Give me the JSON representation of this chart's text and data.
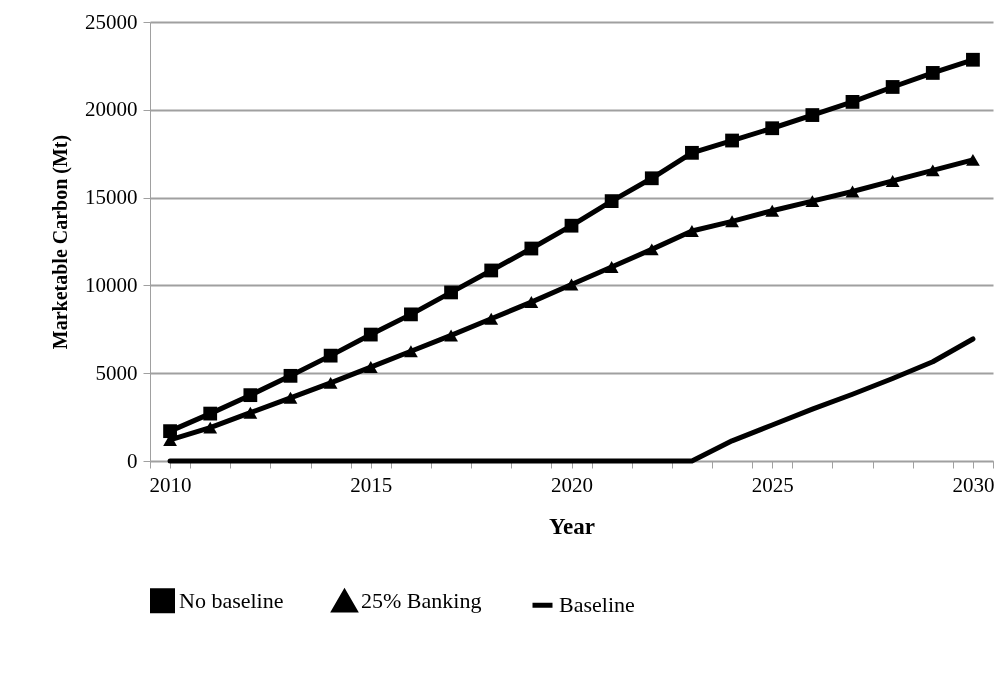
{
  "chart_data": {
    "type": "line",
    "xlabel": "Year",
    "ylabel": "Marketable Carbon (Mt)",
    "x": [
      2010,
      2011,
      2012,
      2013,
      2014,
      2015,
      2016,
      2017,
      2018,
      2019,
      2020,
      2021,
      2022,
      2023,
      2024,
      2025,
      2026,
      2027,
      2028,
      2029,
      2030
    ],
    "series": [
      {
        "name": "No baseline",
        "color": "#000000",
        "marker": "square",
        "values": [
          1700,
          2700,
          3750,
          4850,
          6000,
          7200,
          8350,
          9600,
          10850,
          12100,
          13400,
          14800,
          16100,
          17550,
          18250,
          18950,
          19700,
          20450,
          21300,
          22100,
          22850
        ]
      },
      {
        "name": "25% Banking",
        "color": "#000000",
        "marker": "triangle",
        "values": [
          1200,
          1900,
          2750,
          3600,
          4450,
          5350,
          6250,
          7150,
          8100,
          9050,
          10050,
          11050,
          12050,
          13100,
          13650,
          14250,
          14800,
          15350,
          15950,
          16550,
          17150
        ]
      },
      {
        "name": "Baseline",
        "color": "#000000",
        "marker": "none",
        "values": [
          0,
          0,
          0,
          0,
          0,
          0,
          0,
          0,
          0,
          0,
          0,
          0,
          0,
          0,
          1150,
          2050,
          2950,
          3800,
          4700,
          5650,
          6950
        ]
      }
    ],
    "xlim": [
      2009.5,
      2030.5
    ],
    "xticks": [
      {
        "value": 2009.5,
        "label": null
      },
      2010,
      {
        "value": 2010.5,
        "label": null
      },
      {
        "value": 2011.5,
        "label": null
      },
      {
        "value": 2012.5,
        "label": null
      },
      {
        "value": 2013.5,
        "label": null
      },
      {
        "value": 2014.5,
        "label": null
      },
      2015,
      {
        "value": 2015.5,
        "label": null
      },
      {
        "value": 2016.5,
        "label": null
      },
      {
        "value": 2017.5,
        "label": null
      },
      {
        "value": 2018.5,
        "label": null
      },
      {
        "value": 2019.5,
        "label": null
      },
      2020,
      {
        "value": 2020.5,
        "label": null
      },
      {
        "value": 2021.5,
        "label": null
      },
      {
        "value": 2022.5,
        "label": null
      },
      {
        "value": 2023.5,
        "label": null
      },
      {
        "value": 2024.5,
        "label": null
      },
      2025,
      {
        "value": 2025.5,
        "label": null
      },
      {
        "value": 2026.5,
        "label": null
      },
      {
        "value": 2027.5,
        "label": null
      },
      {
        "value": 2028.5,
        "label": null
      },
      {
        "value": 2029.5,
        "label": null
      },
      2030,
      {
        "value": 2030.5,
        "label": null
      }
    ],
    "ylim": [
      0,
      25000
    ],
    "yticks": [
      0,
      5000,
      10000,
      15000,
      20000,
      25000
    ],
    "grid": "y",
    "legend": "bottom",
    "line_style": "solid"
  }
}
